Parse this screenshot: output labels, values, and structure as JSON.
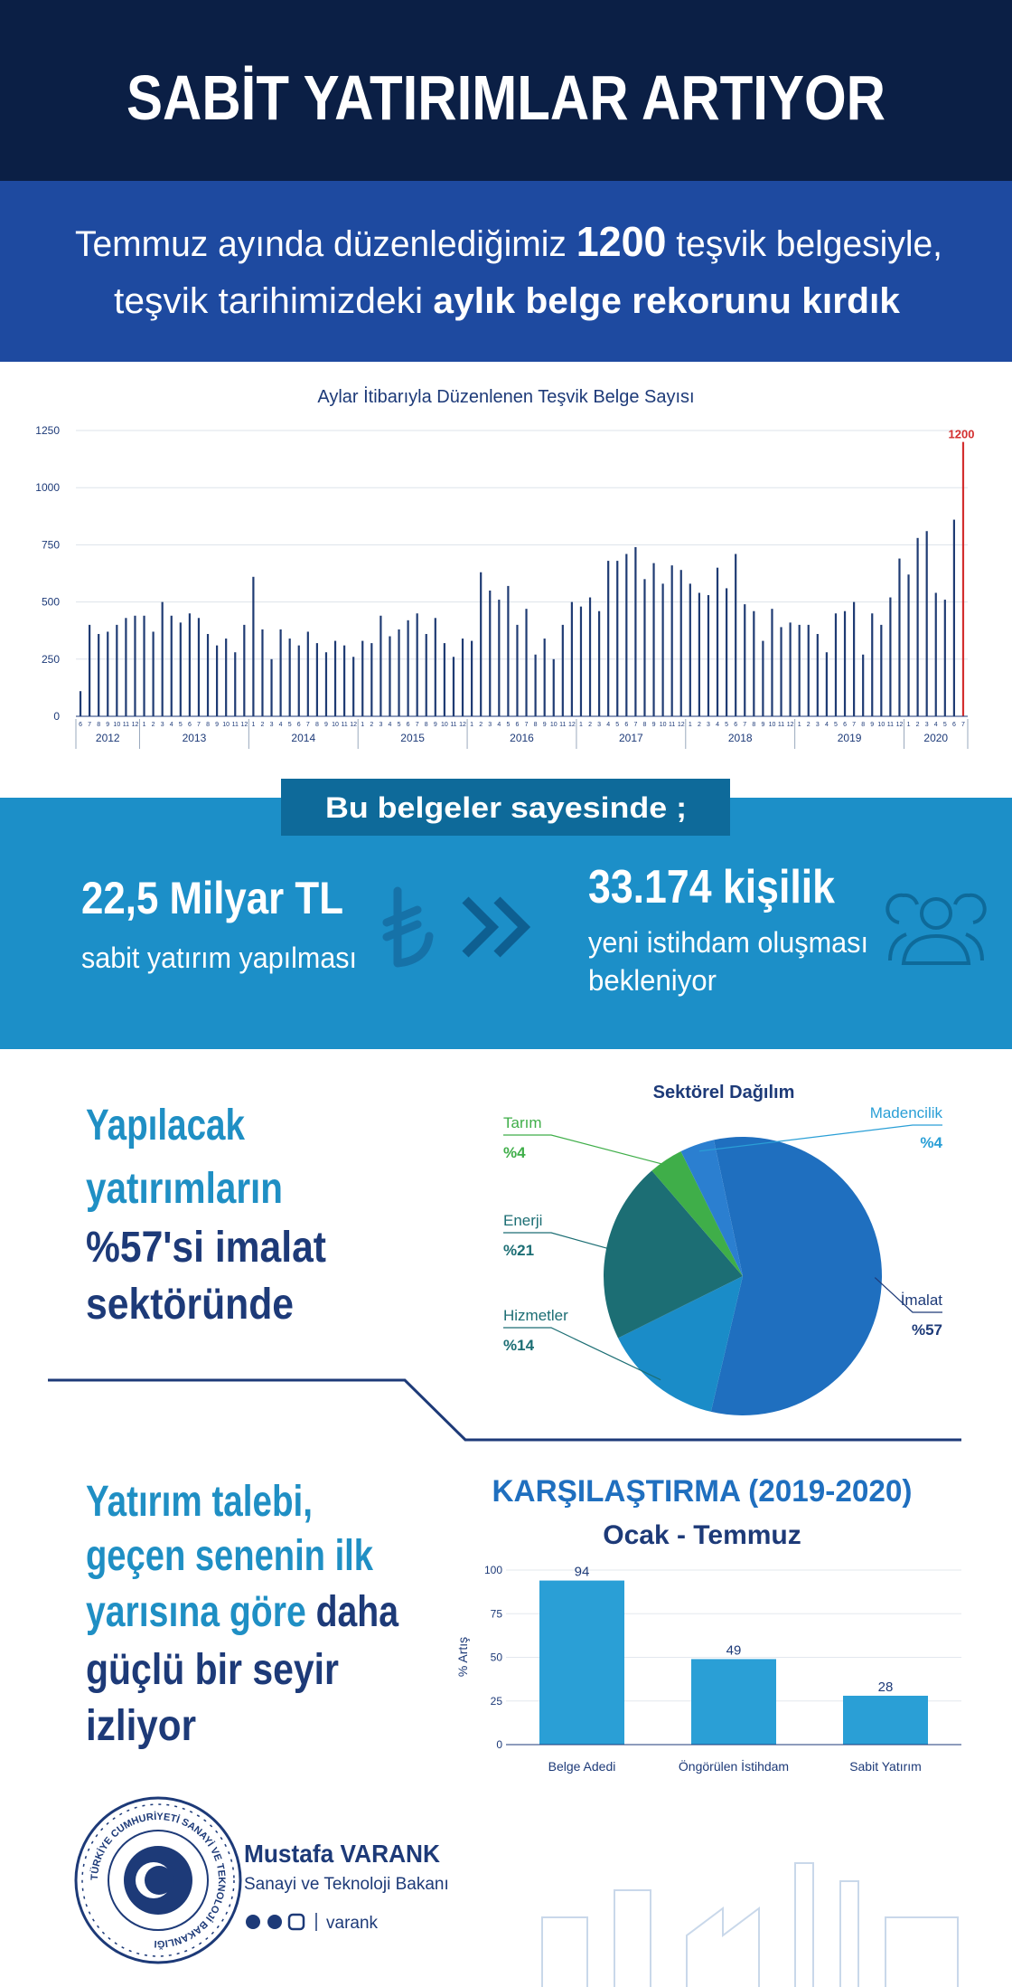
{
  "header": {
    "title": "SABİT YATIRIMLAR ARTIYOR"
  },
  "banner": {
    "line1": [
      "Temmuz ayında düzenlediğimiz ",
      "1200",
      " teşvik belgesiyle,"
    ],
    "line2": [
      "teşvik tarihimizdeki ",
      "aylık belge rekorunu kırdık"
    ]
  },
  "chart_data": [
    {
      "type": "bar",
      "title": "Aylar İtibarıyla Düzenlenen Teşvik Belge Sayısı",
      "categories": [
        "6",
        "7",
        "8",
        "9",
        "10",
        "11",
        "12",
        "1",
        "2",
        "3",
        "4",
        "5",
        "6",
        "7",
        "8",
        "9",
        "10",
        "11",
        "12",
        "1",
        "2",
        "3",
        "4",
        "5",
        "6",
        "7",
        "8",
        "9",
        "10",
        "11",
        "12",
        "1",
        "2",
        "3",
        "4",
        "5",
        "6",
        "7",
        "8",
        "9",
        "10",
        "11",
        "12",
        "1",
        "2",
        "3",
        "4",
        "5",
        "6",
        "7",
        "8",
        "9",
        "10",
        "11",
        "12",
        "1",
        "2",
        "3",
        "4",
        "5",
        "6",
        "7",
        "8",
        "9",
        "10",
        "11",
        "12",
        "1",
        "2",
        "3",
        "4",
        "5",
        "6",
        "7",
        "8",
        "9",
        "10",
        "11",
        "12",
        "1",
        "2",
        "3",
        "4",
        "5",
        "6",
        "7",
        "8",
        "9",
        "10",
        "11",
        "12",
        "1",
        "2",
        "3",
        "4",
        "5",
        "6",
        "7"
      ],
      "year_labels": [
        "2012",
        "2013",
        "2014",
        "2015",
        "2016",
        "2017",
        "2018",
        "2019",
        "2020"
      ],
      "values": [
        110,
        400,
        360,
        370,
        400,
        430,
        440,
        440,
        370,
        500,
        440,
        410,
        450,
        430,
        360,
        310,
        340,
        280,
        400,
        610,
        380,
        250,
        380,
        340,
        310,
        370,
        320,
        280,
        330,
        310,
        260,
        330,
        320,
        440,
        350,
        380,
        420,
        450,
        360,
        430,
        320,
        260,
        340,
        330,
        630,
        550,
        510,
        570,
        400,
        470,
        270,
        340,
        250,
        400,
        500,
        480,
        520,
        460,
        680,
        680,
        710,
        740,
        600,
        670,
        580,
        660,
        640,
        580,
        540,
        530,
        650,
        560,
        710,
        490,
        460,
        330,
        470,
        390,
        410,
        400,
        400,
        360,
        280,
        450,
        460,
        500,
        270,
        450,
        400,
        520,
        690,
        620,
        780,
        810,
        540,
        510,
        860,
        1200
      ],
      "color": "#1f3b73",
      "last_color": "#d32f2f",
      "ylim": [
        0,
        1250
      ],
      "yticks": [
        0,
        250,
        500,
        750,
        1000,
        1250
      ],
      "grid": true
    },
    {
      "type": "pie",
      "title": "Sektörel Dağılım",
      "categories": [
        "İmalat",
        "Hizmetler",
        "Enerji",
        "Tarım",
        "Madencilik"
      ],
      "values": [
        57,
        14,
        21,
        4,
        4
      ],
      "value_labels": [
        "%57",
        "%14",
        "%21",
        "%4",
        "%4"
      ],
      "colors": [
        "#1f6fbf",
        "#1a8cc8",
        "#1c6e74",
        "#3fae49",
        "#2b7fd0"
      ]
    },
    {
      "type": "bar",
      "title": "KARŞILAŞTIRMA  (2019-2020)",
      "subtitle": "Ocak - Temmuz",
      "y_label": "% Artış",
      "categories": [
        "Belge Adedi",
        "Öngörülen İstihdam",
        "Sabit Yatırım"
      ],
      "values": [
        94,
        49,
        28
      ],
      "color": "#2a9fd6",
      "ylim": [
        0,
        100
      ],
      "yticks": [
        0,
        25,
        50,
        75,
        100
      ],
      "grid": true
    }
  ],
  "results": {
    "heading": "Bu belgeler sayesinde ;",
    "investment": "22,5 Milyar TL",
    "investment_text": "sabit yatırım yapılması",
    "employment": "33.174 kişilik",
    "employment_text1": "yeni istihdam oluşması",
    "employment_text2": "bekleniyor"
  },
  "sector_headline": [
    "Yapılacak",
    "yatırımların",
    "%57'si imalat",
    "sektöründe"
  ],
  "comparison_headline": {
    "line1": "Yatırım talebi,",
    "line2": "geçen senenin ilk",
    "line3": [
      "yarısına göre ",
      "daha"
    ],
    "line4": "güçlü bir seyir",
    "line5": "izliyor"
  },
  "footer": {
    "name": "Mustafa VARANK",
    "position": "Sanayi ve Teknoloji Bakanı",
    "handle": "varank",
    "seal": "TÜRKİYE CUMHURİYETİ SANAYİ VE TEKNOLOJİ BAKANLIĞI"
  }
}
